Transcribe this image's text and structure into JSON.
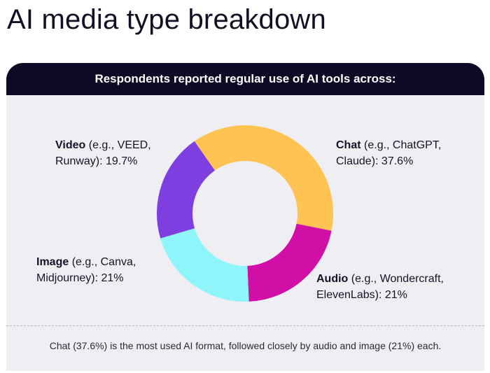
{
  "page": {
    "title": "AI media type breakdown",
    "header": "Respondents reported regular use of AI tools across:",
    "footnote": "Chat (37.6%) is the most used AI format, followed closely by audio and image (21%) each."
  },
  "chart_data": {
    "type": "pie",
    "donut": true,
    "title": "",
    "slices": [
      {
        "key": "chat",
        "name": "Chat",
        "examples": "(e.g., ChatGPT,",
        "examples2": "Claude): 37.6%",
        "value": 37.6,
        "value_text": "37.6%",
        "color": "#ffc353"
      },
      {
        "key": "audio",
        "name": "Audio",
        "examples": "(e.g., Wondercraft,",
        "examples2": "ElevenLabs): 21%",
        "value": 21,
        "value_text": "21%",
        "color": "#d10ea6"
      },
      {
        "key": "image",
        "name": "Image",
        "examples": "(e.g., Canva,",
        "examples2": "Midjourney): 21%",
        "value": 21,
        "value_text": "21%",
        "color": "#8ef6fb"
      },
      {
        "key": "video",
        "name": "Video",
        "examples": "(e.g., VEED,",
        "examples2": "Runway): 19.7%",
        "value": 19.7,
        "value_text": "19.7%",
        "color": "#7f3fe0"
      }
    ]
  }
}
